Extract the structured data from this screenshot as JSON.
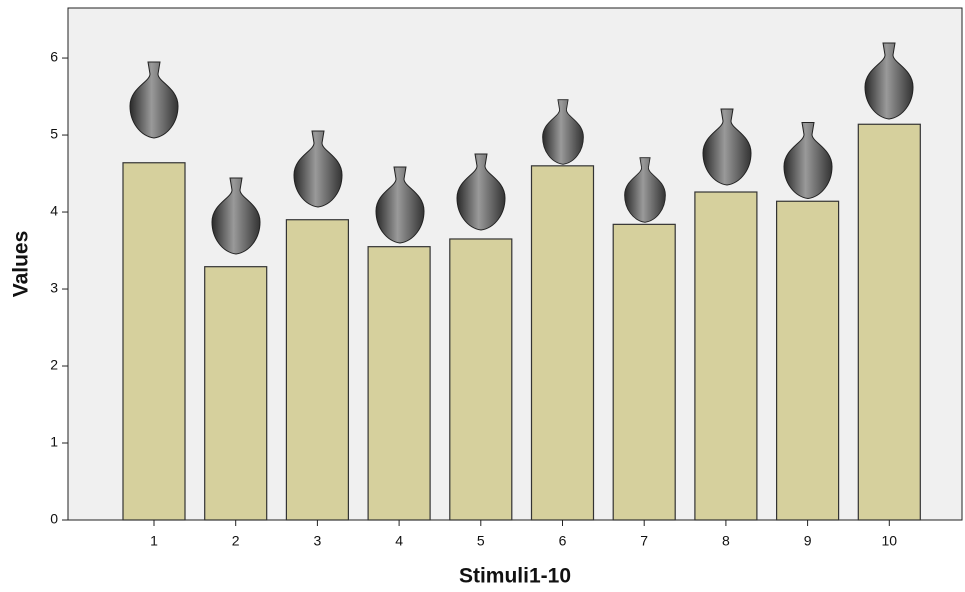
{
  "chart_data": {
    "type": "bar",
    "x_label": "Stimuli1-10",
    "y_label": "Values",
    "categories": [
      "1",
      "2",
      "3",
      "4",
      "5",
      "6",
      "7",
      "8",
      "9",
      "10"
    ],
    "values": [
      4.64,
      3.29,
      3.9,
      3.55,
      3.65,
      4.6,
      3.84,
      4.26,
      4.14,
      5.14
    ],
    "color": "#d6d09d",
    "ylim": [
      0,
      6.65
    ],
    "yticks": [
      0,
      1,
      2,
      3,
      4,
      5,
      6
    ]
  }
}
